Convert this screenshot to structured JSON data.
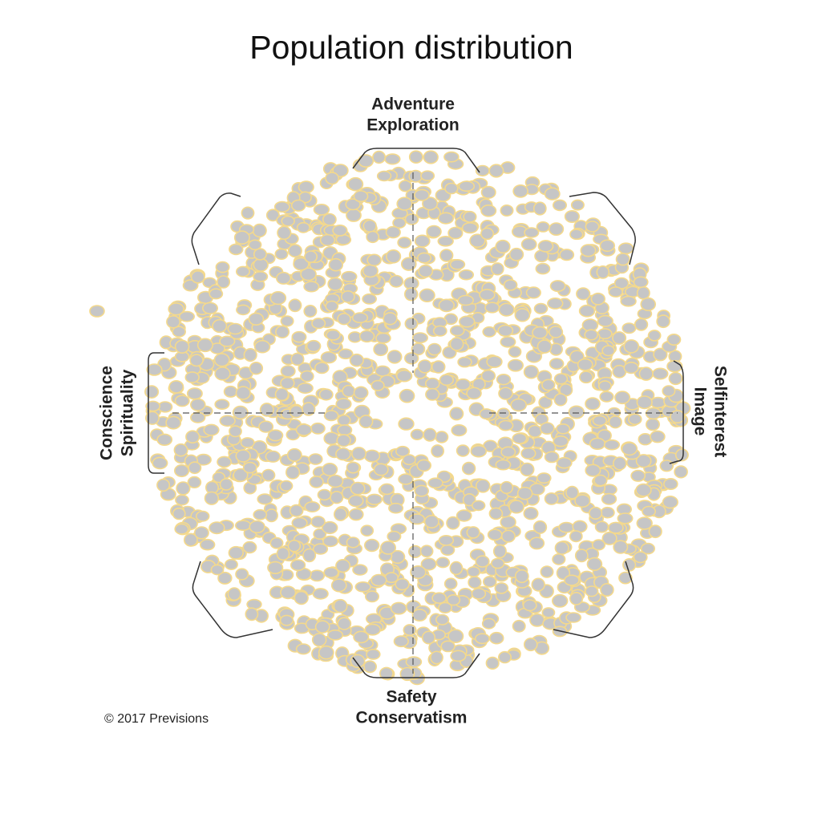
{
  "title": "Population distribution",
  "axes": {
    "top": [
      "Adventure",
      "Exploration"
    ],
    "bottom": [
      "Safety",
      "Conservatism"
    ],
    "left": [
      "Conscience",
      "Spirituality"
    ],
    "right": [
      "Selfinterest",
      "Image"
    ]
  },
  "copyright": "© 2017 Previsions"
}
